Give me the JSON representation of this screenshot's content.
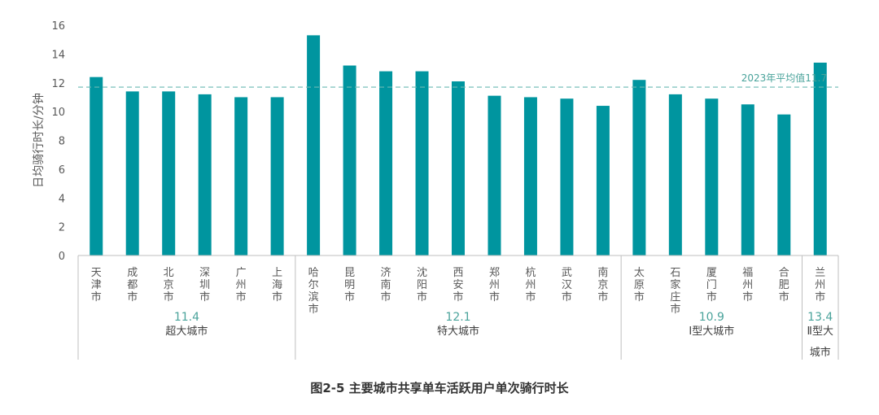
{
  "caption": "图2-5 主要城市共享单车活跃用户单次骑行时长",
  "chart_data": {
    "type": "bar",
    "ylabel": "日均骑行时长/分钟",
    "ylim": [
      0,
      16
    ],
    "yticks": [
      "0",
      "2",
      "4",
      "6",
      "8",
      "10",
      "12",
      "14",
      "16"
    ],
    "grid": false,
    "categories": [
      "天津市",
      "成都市",
      "北京市",
      "深圳市",
      "广州市",
      "上海市",
      "哈尔滨市",
      "昆明市",
      "济南市",
      "沈阳市",
      "西安市",
      "郑州市",
      "杭州市",
      "武汉市",
      "南京市",
      "太原市",
      "石家庄市",
      "厦门市",
      "福州市",
      "合肥市",
      "兰州市"
    ],
    "values": [
      12.4,
      11.4,
      11.4,
      11.2,
      11.0,
      11.0,
      15.3,
      13.2,
      12.8,
      12.8,
      12.1,
      11.1,
      11.0,
      10.9,
      10.4,
      12.2,
      11.2,
      10.9,
      10.5,
      9.8,
      13.4
    ],
    "reference_line": {
      "value": 11.7,
      "label": "2023年平均值11.7"
    },
    "groups": [
      {
        "name": "超大城市",
        "average": "11.4",
        "count": 6
      },
      {
        "name": "特大城市",
        "average": "12.1",
        "count": 9
      },
      {
        "name": "Ⅰ型大城市",
        "average": "10.9",
        "count": 5
      },
      {
        "name": "Ⅱ型大城市",
        "average": "13.4",
        "count": 1
      }
    ],
    "colors": {
      "bar": "#00959f",
      "reference": "#6ab9b3",
      "group_avg": "#4aa39b",
      "axis": "#bfbfbf"
    }
  }
}
